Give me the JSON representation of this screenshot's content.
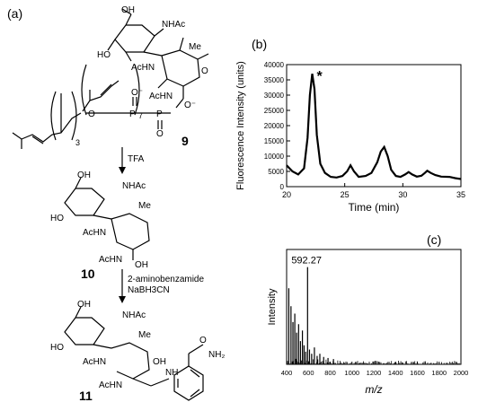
{
  "panels": {
    "a": {
      "label": "(a)",
      "compounds": [
        {
          "number": "9"
        },
        {
          "number": "10"
        },
        {
          "number": "11"
        }
      ],
      "reagents": {
        "step1": "TFA",
        "step2_line1": "2-aminobenzamide",
        "step2_line2": "NaBH3CN"
      },
      "atoms": {
        "OH": "OH",
        "HO": "HO",
        "NHAc": "NHAc",
        "AcHN": "AcHN",
        "Me": "Me",
        "O": "O",
        "P": "P",
        "O_minus": "O⁻",
        "NH": "NH",
        "NH2": "NH₂",
        "sub3": "3",
        "sub7": "7"
      }
    },
    "b": {
      "label": "(b)"
    },
    "c": {
      "label": "(c)"
    }
  },
  "chart_data": [
    {
      "type": "line",
      "panel": "b",
      "xlabel": "Time (min)",
      "ylabel": "Fluorescence Intensity (units)",
      "xlim": [
        20,
        35
      ],
      "ylim": [
        0,
        40000
      ],
      "xticks": [
        20,
        25,
        30,
        35
      ],
      "yticks": [
        0,
        5000,
        10000,
        15000,
        20000,
        25000,
        30000,
        35000,
        40000
      ],
      "annotation": "*",
      "series": [
        {
          "x": [
            20.0,
            20.5,
            21.0,
            21.5,
            21.8,
            22.0,
            22.2,
            22.4,
            22.6,
            22.9,
            23.3,
            23.8,
            24.3,
            24.8,
            25.2,
            25.5,
            25.8,
            26.2,
            26.8,
            27.3,
            27.8,
            28.1,
            28.4,
            28.7,
            29.0,
            29.4,
            29.8,
            30.2,
            30.5,
            30.8,
            31.2,
            31.6,
            31.9,
            32.1,
            32.4,
            32.8,
            33.3,
            34.0,
            34.5,
            35.0
          ],
          "y": [
            7000,
            5000,
            4000,
            6000,
            16000,
            30000,
            37000,
            32000,
            17000,
            7500,
            4500,
            3200,
            3000,
            3500,
            5000,
            7000,
            5000,
            3200,
            3500,
            4500,
            8000,
            11500,
            13000,
            10000,
            5500,
            3500,
            3200,
            4000,
            4800,
            4000,
            3300,
            3600,
            4500,
            5200,
            4500,
            3800,
            3300,
            3200,
            2800,
            2500
          ]
        }
      ]
    },
    {
      "type": "bar",
      "panel": "c",
      "xlabel": "m/z",
      "ylabel": "Intensity",
      "xlim": [
        400,
        2000
      ],
      "xticks": [
        400,
        600,
        800,
        1000,
        1200,
        1400,
        1600,
        1800,
        2000
      ],
      "annotation": "592.27",
      "peaks": [
        {
          "mz": 420,
          "rel": 0.72
        },
        {
          "mz": 440,
          "rel": 0.55
        },
        {
          "mz": 458,
          "rel": 0.4
        },
        {
          "mz": 475,
          "rel": 0.48
        },
        {
          "mz": 492,
          "rel": 0.3
        },
        {
          "mz": 510,
          "rel": 0.38
        },
        {
          "mz": 527,
          "rel": 0.22
        },
        {
          "mz": 545,
          "rel": 0.32
        },
        {
          "mz": 560,
          "rel": 0.18
        },
        {
          "mz": 575,
          "rel": 0.12
        },
        {
          "mz": 592.27,
          "rel": 0.92
        },
        {
          "mz": 610,
          "rel": 0.14
        },
        {
          "mz": 630,
          "rel": 0.1
        },
        {
          "mz": 655,
          "rel": 0.16
        },
        {
          "mz": 680,
          "rel": 0.08
        },
        {
          "mz": 705,
          "rel": 0.1
        },
        {
          "mz": 740,
          "rel": 0.07
        },
        {
          "mz": 780,
          "rel": 0.06
        },
        {
          "mz": 830,
          "rel": 0.05
        }
      ]
    }
  ]
}
